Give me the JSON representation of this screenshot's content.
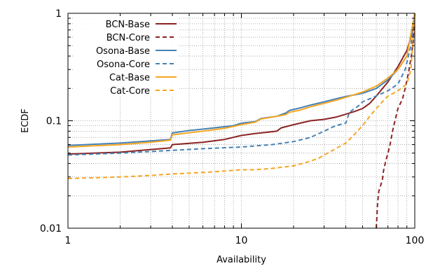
{
  "chart_data": {
    "type": "line",
    "title": "",
    "xlabel": "Availability",
    "ylabel": "ECDF",
    "xscale": "log",
    "yscale": "log",
    "xlim": [
      1,
      100
    ],
    "ylim": [
      0.01,
      1
    ],
    "grid": true,
    "legend_position": "top-left",
    "x_ticks": [
      {
        "value": 1,
        "label": "1"
      },
      {
        "value": 10,
        "label": "10"
      },
      {
        "value": 100,
        "label": "100"
      }
    ],
    "y_ticks": [
      {
        "value": 0.01,
        "label": "0.01"
      },
      {
        "value": 0.1,
        "label": "0.1"
      },
      {
        "value": 1,
        "label": "1"
      }
    ],
    "series": [
      {
        "name": "BCN-Base",
        "color": "#8b2323",
        "dash": "solid",
        "points": [
          [
            1,
            0.049
          ],
          [
            2,
            0.051
          ],
          [
            3,
            0.054
          ],
          [
            3.9,
            0.056
          ],
          [
            4,
            0.06
          ],
          [
            6,
            0.063
          ],
          [
            8,
            0.067
          ],
          [
            10,
            0.073
          ],
          [
            12,
            0.076
          ],
          [
            16,
            0.08
          ],
          [
            17,
            0.086
          ],
          [
            20,
            0.092
          ],
          [
            25,
            0.1
          ],
          [
            30,
            0.103
          ],
          [
            35,
            0.108
          ],
          [
            40,
            0.115
          ],
          [
            45,
            0.122
          ],
          [
            50,
            0.13
          ],
          [
            55,
            0.145
          ],
          [
            60,
            0.17
          ],
          [
            70,
            0.23
          ],
          [
            80,
            0.32
          ],
          [
            90,
            0.45
          ],
          [
            95,
            0.6
          ],
          [
            100,
            1
          ]
        ]
      },
      {
        "name": "BCN-Core",
        "color": "#8b2323",
        "dash": "dashed",
        "points": [
          [
            60,
            0.01
          ],
          [
            61,
            0.017
          ],
          [
            62,
            0.022
          ],
          [
            65,
            0.028
          ],
          [
            66,
            0.034
          ],
          [
            68,
            0.042
          ],
          [
            70,
            0.05
          ],
          [
            72,
            0.06
          ],
          [
            75,
            0.085
          ],
          [
            78,
            0.11
          ],
          [
            80,
            0.13
          ],
          [
            85,
            0.16
          ],
          [
            88,
            0.2
          ],
          [
            92,
            0.28
          ],
          [
            95,
            0.38
          ],
          [
            98,
            0.55
          ],
          [
            100,
            1
          ]
        ]
      },
      {
        "name": "Osona-Base",
        "color": "#4682b4",
        "dash": "solid",
        "points": [
          [
            1,
            0.059
          ],
          [
            2,
            0.062
          ],
          [
            3,
            0.065
          ],
          [
            3.9,
            0.067
          ],
          [
            4,
            0.077
          ],
          [
            5,
            0.081
          ],
          [
            7,
            0.086
          ],
          [
            9,
            0.09
          ],
          [
            10,
            0.095
          ],
          [
            12,
            0.098
          ],
          [
            13,
            0.105
          ],
          [
            16,
            0.11
          ],
          [
            18,
            0.118
          ],
          [
            19,
            0.125
          ],
          [
            22,
            0.132
          ],
          [
            25,
            0.14
          ],
          [
            30,
            0.15
          ],
          [
            35,
            0.16
          ],
          [
            40,
            0.168
          ],
          [
            50,
            0.18
          ],
          [
            60,
            0.2
          ],
          [
            70,
            0.24
          ],
          [
            80,
            0.3
          ],
          [
            90,
            0.4
          ],
          [
            100,
            1
          ]
        ]
      },
      {
        "name": "Osona-Core",
        "color": "#4682b4",
        "dash": "dashed",
        "points": [
          [
            1,
            0.048
          ],
          [
            2,
            0.05
          ],
          [
            4,
            0.053
          ],
          [
            6,
            0.055
          ],
          [
            10,
            0.057
          ],
          [
            15,
            0.06
          ],
          [
            20,
            0.064
          ],
          [
            25,
            0.07
          ],
          [
            30,
            0.08
          ],
          [
            35,
            0.09
          ],
          [
            40,
            0.095
          ],
          [
            42,
            0.12
          ],
          [
            45,
            0.13
          ],
          [
            48,
            0.14
          ],
          [
            50,
            0.15
          ],
          [
            55,
            0.16
          ],
          [
            60,
            0.17
          ],
          [
            70,
            0.19
          ],
          [
            80,
            0.22
          ],
          [
            88,
            0.3
          ],
          [
            95,
            0.5
          ],
          [
            100,
            1
          ]
        ]
      },
      {
        "name": "Cat-Base",
        "color": "#f5a623",
        "dash": "solid",
        "points": [
          [
            1,
            0.057
          ],
          [
            2,
            0.06
          ],
          [
            3,
            0.063
          ],
          [
            3.9,
            0.066
          ],
          [
            4,
            0.074
          ],
          [
            6,
            0.08
          ],
          [
            8,
            0.085
          ],
          [
            10,
            0.092
          ],
          [
            12,
            0.097
          ],
          [
            13,
            0.104
          ],
          [
            16,
            0.11
          ],
          [
            18,
            0.114
          ],
          [
            19,
            0.12
          ],
          [
            22,
            0.126
          ],
          [
            25,
            0.135
          ],
          [
            30,
            0.145
          ],
          [
            35,
            0.155
          ],
          [
            40,
            0.165
          ],
          [
            50,
            0.185
          ],
          [
            60,
            0.21
          ],
          [
            70,
            0.25
          ],
          [
            80,
            0.3
          ],
          [
            90,
            0.4
          ],
          [
            100,
            1
          ]
        ]
      },
      {
        "name": "Cat-Core",
        "color": "#f5a623",
        "dash": "dashed",
        "points": [
          [
            1,
            0.029
          ],
          [
            2,
            0.03
          ],
          [
            3,
            0.031
          ],
          [
            4,
            0.032
          ],
          [
            6,
            0.033
          ],
          [
            8,
            0.034
          ],
          [
            10,
            0.035
          ],
          [
            12,
            0.035
          ],
          [
            15,
            0.036
          ],
          [
            20,
            0.038
          ],
          [
            25,
            0.042
          ],
          [
            28,
            0.045
          ],
          [
            30,
            0.048
          ],
          [
            35,
            0.055
          ],
          [
            40,
            0.062
          ],
          [
            45,
            0.075
          ],
          [
            50,
            0.09
          ],
          [
            55,
            0.11
          ],
          [
            60,
            0.13
          ],
          [
            65,
            0.15
          ],
          [
            70,
            0.17
          ],
          [
            80,
            0.19
          ],
          [
            90,
            0.22
          ],
          [
            95,
            0.3
          ],
          [
            100,
            1
          ]
        ]
      }
    ]
  }
}
